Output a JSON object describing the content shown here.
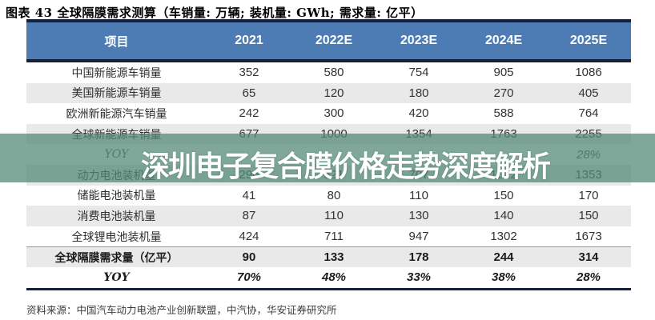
{
  "figure": {
    "title": "图表 43 全球隔膜需求测算（车销量: 万辆; 装机量: GWh; 需求量: 亿平）",
    "source": "资料来源：中国汽车动力电池产业创新联盟，中汽协，华安证券研究所"
  },
  "watermark": {
    "text": "深圳电子复合膜价格走势深度解析"
  },
  "colors": {
    "header_blue": "#4d7cb5",
    "dark_navy_line": "#16203a",
    "alt_row_gray": "#e9e9e9",
    "watermark_band_green": "rgba(82,138,120,0.74)",
    "watermark_text": "#ffffff"
  },
  "chart_data": {
    "type": "table",
    "title": "全球隔膜需求测算",
    "units": {
      "车销量": "万辆",
      "装机量": "GWh",
      "需求量": "亿平"
    },
    "columns": [
      "项目",
      "2021",
      "2022E",
      "2023E",
      "2024E",
      "2025E"
    ],
    "rows": [
      {
        "label": "中国新能源车销量",
        "values": [
          "352",
          "580",
          "754",
          "905",
          "1086"
        ],
        "style": "normal"
      },
      {
        "label": "美国新能源车销量",
        "values": [
          "65",
          "120",
          "180",
          "270",
          "405"
        ],
        "style": "normal"
      },
      {
        "label": "欧洲新能源汽车销量",
        "values": [
          "242",
          "300",
          "420",
          "588",
          "764"
        ],
        "style": "normal"
      },
      {
        "label": "全球新能源车销量",
        "values": [
          "677",
          "1000",
          "1354",
          "1763",
          "2255"
        ],
        "style": "normal"
      },
      {
        "label": "YOY",
        "values": [
          "",
          "",
          "",
          "",
          "28%"
        ],
        "style": "yoy"
      },
      {
        "label": "动力电池装机量",
        "values": [
          "296",
          "521",
          "707",
          "1012",
          "1353"
        ],
        "style": "normal"
      },
      {
        "label": "储能电池装机量",
        "values": [
          "41",
          "80",
          "110",
          "150",
          "170"
        ],
        "style": "normal"
      },
      {
        "label": "消费电池装机量",
        "values": [
          "87",
          "110",
          "130",
          "140",
          "150"
        ],
        "style": "normal"
      },
      {
        "label": "全球锂电池装机量",
        "values": [
          "424",
          "711",
          "947",
          "1302",
          "1673"
        ],
        "style": "normal"
      },
      {
        "label": "全球隔膜需求量（亿平）",
        "values": [
          "90",
          "133",
          "178",
          "244",
          "314"
        ],
        "style": "total"
      },
      {
        "label": "YOY",
        "values": [
          "70%",
          "48%",
          "33%",
          "38%",
          "28%"
        ],
        "style": "total-yoy"
      }
    ]
  }
}
